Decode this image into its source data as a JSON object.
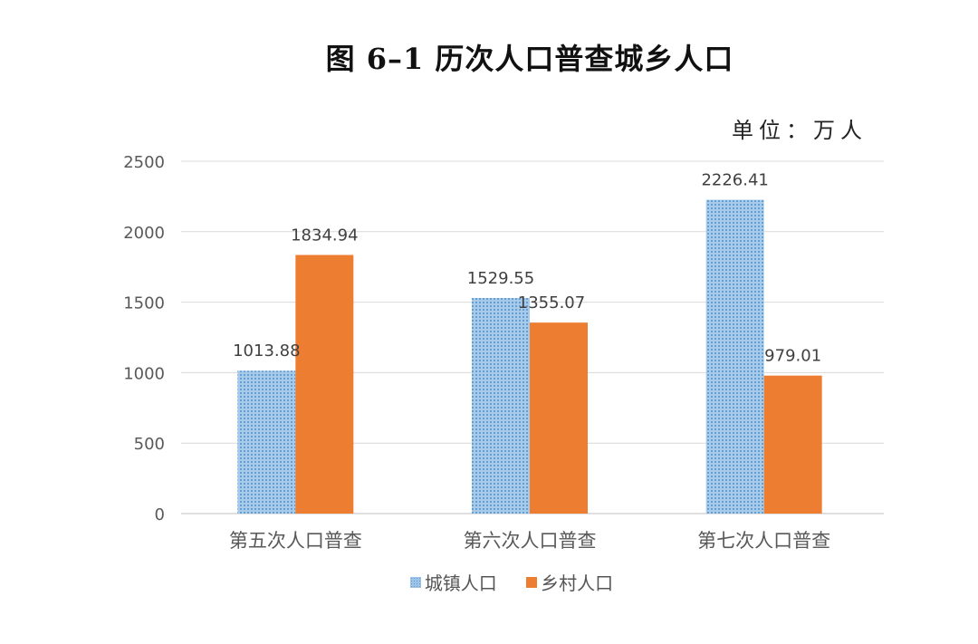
{
  "title": "图 6–1 历次人口普查城乡人口",
  "unit_label": "单位：万人",
  "chart_data": {
    "type": "bar",
    "categories": [
      "第五次人口普查",
      "第六次人口普查",
      "第七次人口普查"
    ],
    "series": [
      {
        "name": "城镇人口",
        "values": [
          1013.88,
          1529.55,
          2226.41
        ],
        "color": "#5b9bd5",
        "pattern": "dotted"
      },
      {
        "name": "乡村人口",
        "values": [
          1834.94,
          1355.07,
          979.01
        ],
        "color": "#ed7d31",
        "pattern": "solid"
      }
    ],
    "data_labels": [
      [
        "1013.88",
        "1529.55",
        "2226.41"
      ],
      [
        "1834.94",
        "1355.07",
        "979.01"
      ]
    ],
    "ylim": [
      0,
      2500
    ],
    "yticks": [
      0,
      500,
      1000,
      1500,
      2000,
      2500
    ],
    "grid": true,
    "legend_position": "bottom",
    "xlabel": "",
    "ylabel": ""
  }
}
